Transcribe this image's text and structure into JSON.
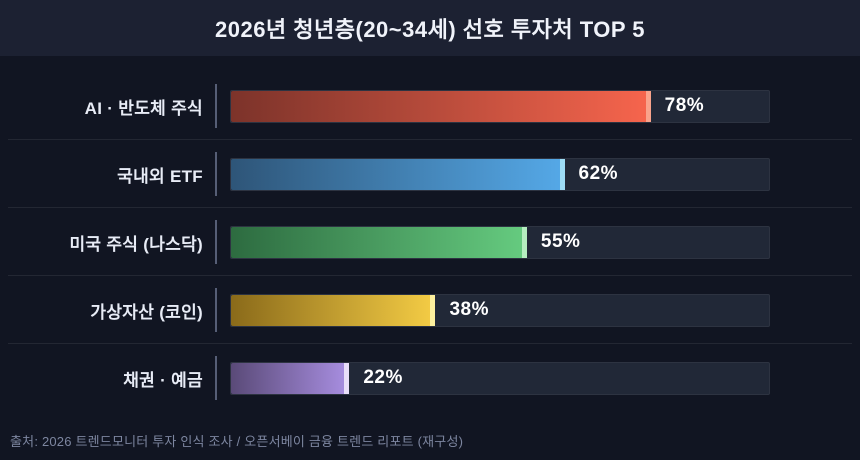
{
  "header": {
    "title": "2026년 청년층(20~34세) 선호 투자처 TOP 5"
  },
  "footer": {
    "source": "출처: 2026 트렌드모니터 투자 인식 조사 / 오픈서베이 금융 트렌드 리포트 (재구성)"
  },
  "chart_data": {
    "type": "bar",
    "orientation": "horizontal",
    "title": "2026년 청년층(20~34세) 선호 투자처 TOP 5",
    "categories": [
      "AI · 반도체 주식",
      "국내외 ETF",
      "미국 주식 (나스닥)",
      "가상자산 (코인)",
      "채권 · 예금"
    ],
    "values": [
      78,
      62,
      55,
      38,
      22
    ],
    "value_labels": [
      "78%",
      "62%",
      "55%",
      "38%",
      "22%"
    ],
    "unit": "%",
    "xlim": [
      0,
      100
    ],
    "grid": false,
    "legend": false
  },
  "bar_styles": [
    {
      "start": "#7c332a",
      "end": "#f7654d",
      "cap": "#f9a38b"
    },
    {
      "start": "#2e5578",
      "end": "#55a9e8",
      "cap": "#9ddcf5"
    },
    {
      "start": "#2d6b40",
      "end": "#66cc80",
      "cap": "#b5eec0"
    },
    {
      "start": "#8a6a1a",
      "end": "#f5cd45",
      "cap": "#fdf09e"
    },
    {
      "start": "#5a4a78",
      "end": "#a98fe2",
      "cap": "#e9def9"
    }
  ],
  "colors": {
    "page_bg": "#111522",
    "header_bg": "#1c2132",
    "track_bg": "#212837",
    "divider": "rgba(255,255,255,0.08)",
    "label_text": "#e8ecf6",
    "percent_text": "#ffffff",
    "footer_text": "#7d86a0"
  }
}
